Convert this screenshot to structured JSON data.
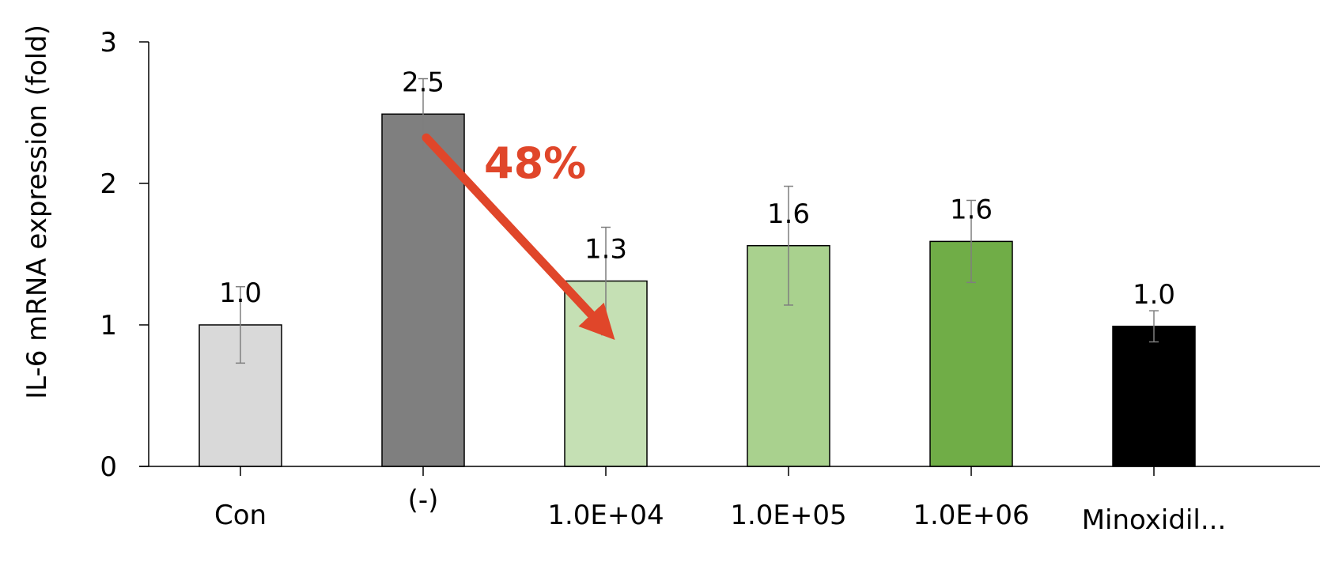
{
  "chart_data": {
    "type": "bar",
    "title": "",
    "xlabel": "",
    "ylabel": "IL-6 mRNA expression (fold)",
    "ylim": [
      0,
      3
    ],
    "yticks": [
      "0",
      "1",
      "2",
      "3"
    ],
    "categories": [
      "Con",
      "(-)",
      "1.0E+04",
      "1.0E+05",
      "1.0E+06",
      "Minoxidil..."
    ],
    "values": [
      1.0,
      2.49,
      1.31,
      1.56,
      1.59,
      0.99
    ],
    "data_labels": [
      "1.0",
      "2.5",
      "1.3",
      "1.6",
      "1.6",
      "1.0"
    ],
    "errors": [
      0.27,
      0.25,
      0.38,
      0.42,
      0.29,
      0.11
    ],
    "colors": [
      "#d9d9d9",
      "#7f7f7f",
      "#c5e0b4",
      "#a9d18e",
      "#70ad47",
      "#000000"
    ],
    "grid": false,
    "annotation": {
      "text": "48%",
      "color": "#e0462a",
      "from_category": "(-)",
      "to_category": "1.0E+04"
    }
  }
}
